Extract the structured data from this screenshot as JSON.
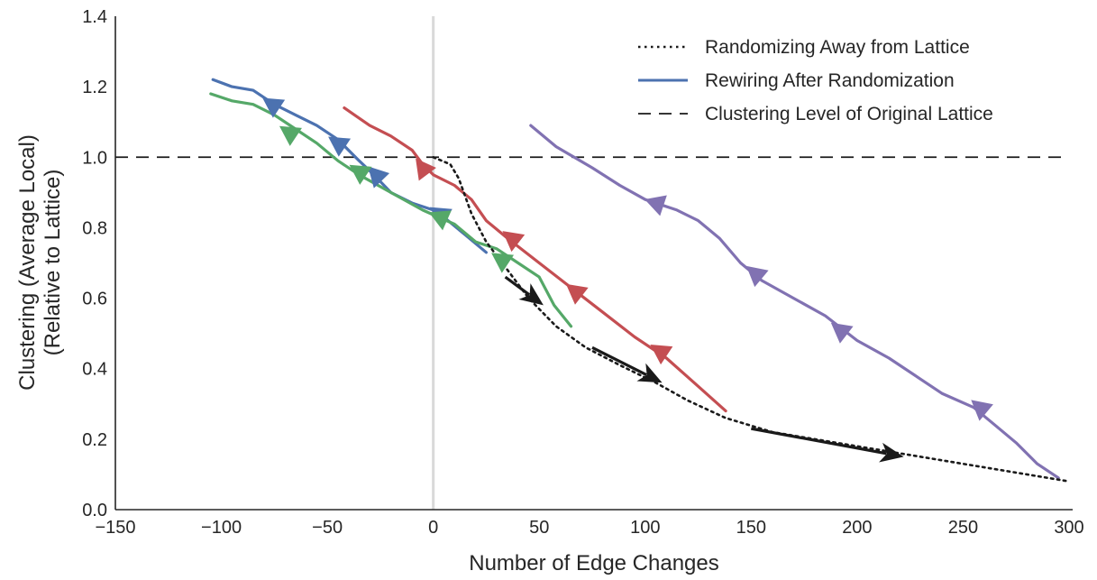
{
  "chart_data": {
    "type": "line",
    "title": "",
    "xlabel": "Number of Edge Changes",
    "ylabel_lines": [
      "Clustering (Average Local)",
      "(Relative to Lattice)"
    ],
    "xlim": [
      -150,
      300
    ],
    "ylim": [
      0.0,
      1.4
    ],
    "xticks": [
      -150,
      -100,
      -50,
      0,
      50,
      100,
      150,
      200,
      250,
      300
    ],
    "xtick_labels": [
      "−150",
      "−100",
      "−50",
      "0",
      "50",
      "100",
      "150",
      "200",
      "250",
      "300"
    ],
    "yticks": [
      0.0,
      0.2,
      0.4,
      0.6,
      0.8,
      1.0,
      1.2,
      1.4
    ],
    "ytick_labels": [
      "0.0",
      "0.2",
      "0.4",
      "0.6",
      "0.8",
      "1.0",
      "1.2",
      "1.4"
    ],
    "grid": false,
    "vertical_reference_x": 0,
    "legend_position": "top-right",
    "legend": [
      {
        "label": "Randomizing Away from Lattice",
        "style": "dotted",
        "color": "#1a1a1a"
      },
      {
        "label": "Rewiring After Randomization",
        "style": "solid",
        "color": "#4c72b0"
      },
      {
        "label": "Clustering Level of Original Lattice",
        "style": "dashed",
        "color": "#1a1a1a"
      }
    ],
    "original_lattice_level": 1.0,
    "randomizing_path": {
      "color": "#1a1a1a",
      "x": [
        0,
        8,
        12,
        18,
        25,
        35,
        45,
        58,
        72,
        88,
        105,
        120,
        138,
        160,
        190,
        220,
        250,
        280,
        300
      ],
      "y": [
        1.0,
        0.98,
        0.94,
        0.84,
        0.76,
        0.68,
        0.6,
        0.52,
        0.46,
        0.41,
        0.36,
        0.31,
        0.26,
        0.22,
        0.19,
        0.16,
        0.13,
        0.1,
        0.08
      ]
    },
    "arrows": [
      {
        "from": [
          34,
          0.66
        ],
        "to": [
          52,
          0.58
        ],
        "color": "#1a1a1a"
      },
      {
        "from": [
          75,
          0.46
        ],
        "to": [
          108,
          0.36
        ],
        "color": "#1a1a1a"
      },
      {
        "from": [
          150,
          0.23
        ],
        "to": [
          222,
          0.15
        ],
        "color": "#1a1a1a"
      }
    ],
    "series": [
      {
        "name": "blue",
        "color": "#4c72b0",
        "x": [
          -104,
          -95,
          -85,
          -75,
          -65,
          -55,
          -45,
          -35,
          -28,
          -20,
          -10,
          0,
          5,
          15,
          25
        ],
        "y": [
          1.22,
          1.2,
          1.19,
          1.15,
          1.12,
          1.09,
          1.05,
          0.99,
          0.95,
          0.9,
          0.87,
          0.85,
          0.83,
          0.78,
          0.73
        ],
        "markers": [
          {
            "x": -76,
            "y": 1.15
          },
          {
            "x": -45,
            "y": 1.04
          },
          {
            "x": -27,
            "y": 0.95
          },
          {
            "x": 3,
            "y": 0.84
          }
        ]
      },
      {
        "name": "green",
        "color": "#55a868",
        "x": [
          -105,
          -95,
          -85,
          -75,
          -65,
          -55,
          -45,
          -35,
          -20,
          -5,
          10,
          20,
          30,
          40,
          50,
          57,
          65
        ],
        "y": [
          1.18,
          1.16,
          1.15,
          1.12,
          1.08,
          1.04,
          0.99,
          0.95,
          0.9,
          0.85,
          0.81,
          0.76,
          0.74,
          0.7,
          0.66,
          0.58,
          0.52
        ],
        "markers": [
          {
            "x": -68,
            "y": 1.07
          },
          {
            "x": -35,
            "y": 0.96
          },
          {
            "x": 3,
            "y": 0.83
          },
          {
            "x": 32,
            "y": 0.71
          }
        ]
      },
      {
        "name": "red",
        "color": "#c44e52",
        "x": [
          -42,
          -30,
          -20,
          -10,
          -5,
          0,
          10,
          18,
          25,
          35,
          50,
          65,
          80,
          95,
          110,
          125,
          138
        ],
        "y": [
          1.14,
          1.09,
          1.06,
          1.02,
          0.98,
          0.95,
          0.92,
          0.88,
          0.82,
          0.77,
          0.7,
          0.63,
          0.56,
          0.49,
          0.43,
          0.35,
          0.28
        ],
        "markers": [
          {
            "x": -5,
            "y": 0.97
          },
          {
            "x": 37,
            "y": 0.77
          },
          {
            "x": 67,
            "y": 0.62
          },
          {
            "x": 107,
            "y": 0.45
          }
        ]
      },
      {
        "name": "purple",
        "color": "#8172b2",
        "x": [
          46,
          58,
          75,
          88,
          100,
          115,
          125,
          135,
          145,
          155,
          170,
          185,
          200,
          215,
          230,
          240,
          255,
          265,
          275,
          285,
          295
        ],
        "y": [
          1.09,
          1.03,
          0.97,
          0.92,
          0.88,
          0.85,
          0.82,
          0.77,
          0.7,
          0.65,
          0.6,
          0.55,
          0.48,
          0.43,
          0.37,
          0.33,
          0.29,
          0.24,
          0.19,
          0.13,
          0.09
        ],
        "markers": [
          {
            "x": 105,
            "y": 0.87
          },
          {
            "x": 152,
            "y": 0.67
          },
          {
            "x": 192,
            "y": 0.51
          },
          {
            "x": 258,
            "y": 0.29
          }
        ]
      }
    ]
  }
}
